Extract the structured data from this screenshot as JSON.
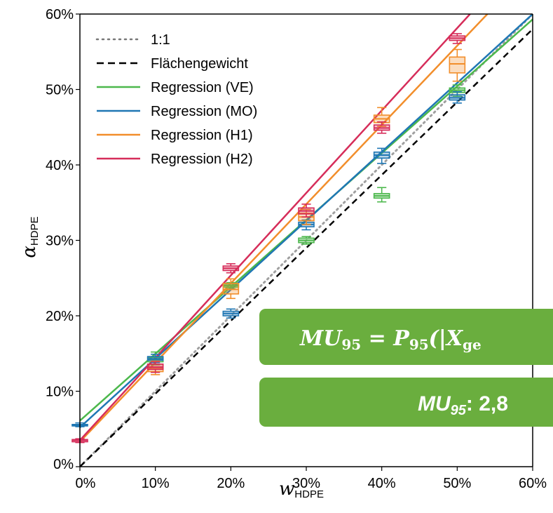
{
  "chart_data": {
    "type": "line",
    "xlabel": "w",
    "xlabel_sub": "HDPE",
    "ylabel": "α",
    "ylabel_sub": "HDPE",
    "xlim": [
      0,
      60
    ],
    "ylim": [
      0,
      60
    ],
    "x_ticks": [
      0,
      10,
      20,
      30,
      40,
      50,
      60
    ],
    "y_ticks": [
      0,
      10,
      20,
      30,
      40,
      50,
      60
    ],
    "x_tick_labels": [
      "0%",
      "10%",
      "20%",
      "30%",
      "40%",
      "50%",
      "60%"
    ],
    "y_tick_labels": [
      "0%",
      "10%",
      "20%",
      "30%",
      "40%",
      "50%",
      "60%"
    ],
    "legend": "top-left",
    "reference_lines": [
      {
        "name": "1:1",
        "style": "dotted",
        "color": "#a0a0a0",
        "x": [
          0,
          60
        ],
        "y": [
          0,
          60
        ]
      },
      {
        "name": "Flächengewicht",
        "style": "dashed",
        "color": "#000000",
        "x": [
          0,
          60
        ],
        "y": [
          0,
          58
        ]
      }
    ],
    "series": [
      {
        "name": "Regression (VE)",
        "color": "#4cb84c",
        "line": [
          [
            0,
            6.1
          ],
          [
            60,
            59.3
          ]
        ],
        "boxes": [
          {
            "x": 10,
            "q1": 13.9,
            "median": 14.2,
            "q3": 14.5,
            "wmin": 13.5,
            "wmax": 15.2
          },
          {
            "x": 20,
            "q1": 23.8,
            "median": 24.0,
            "q3": 24.2,
            "wmin": 23.6,
            "wmax": 24.4
          },
          {
            "x": 30,
            "q1": 29.7,
            "median": 30.0,
            "q3": 30.3,
            "wmin": 29.5,
            "wmax": 30.5
          },
          {
            "x": 40,
            "q1": 35.6,
            "median": 35.9,
            "q3": 36.2,
            "wmin": 35.1,
            "wmax": 37.0
          },
          {
            "x": 50,
            "q1": 49.6,
            "median": 49.9,
            "q3": 50.2,
            "wmin": 49.1,
            "wmax": 50.6
          }
        ]
      },
      {
        "name": "Regression (MO)",
        "color": "#1f77b4",
        "line": [
          [
            0,
            5.2
          ],
          [
            60,
            60.0
          ]
        ],
        "boxes": [
          {
            "x": 0,
            "q1": 5.4,
            "median": 5.5,
            "q3": 5.6,
            "wmin": 5.3,
            "wmax": 5.8
          },
          {
            "x": 10,
            "q1": 14.1,
            "median": 14.3,
            "q3": 14.6,
            "wmin": 13.8,
            "wmax": 14.9
          },
          {
            "x": 20,
            "q1": 20.0,
            "median": 20.3,
            "q3": 20.6,
            "wmin": 19.7,
            "wmax": 20.9
          },
          {
            "x": 30,
            "q1": 31.8,
            "median": 32.1,
            "q3": 32.4,
            "wmin": 31.4,
            "wmax": 32.7
          },
          {
            "x": 40,
            "q1": 40.9,
            "median": 41.3,
            "q3": 41.7,
            "wmin": 40.2,
            "wmax": 42.2
          },
          {
            "x": 50,
            "q1": 48.6,
            "median": 48.9,
            "q3": 49.3,
            "wmin": 48.2,
            "wmax": 49.7
          }
        ]
      },
      {
        "name": "Regression (H1)",
        "color": "#f28e2b",
        "line": [
          [
            0,
            3.3
          ],
          [
            54,
            60.0
          ]
        ],
        "boxes": [
          {
            "x": 10,
            "q1": 12.6,
            "median": 13.0,
            "q3": 13.6,
            "wmin": 12.2,
            "wmax": 14.0
          },
          {
            "x": 20,
            "q1": 22.9,
            "median": 23.5,
            "q3": 24.3,
            "wmin": 22.3,
            "wmax": 24.9
          },
          {
            "x": 30,
            "q1": 32.6,
            "median": 33.1,
            "q3": 33.6,
            "wmin": 32.1,
            "wmax": 34.1
          },
          {
            "x": 40,
            "q1": 45.6,
            "median": 46.1,
            "q3": 46.6,
            "wmin": 45.1,
            "wmax": 47.6
          },
          {
            "x": 50,
            "q1": 52.2,
            "median": 53.4,
            "q3": 54.3,
            "wmin": 51.1,
            "wmax": 55.3
          }
        ]
      },
      {
        "name": "Regression (H2)",
        "color": "#d62d5a",
        "line": [
          [
            0,
            3.5
          ],
          [
            51.7,
            60.0
          ]
        ],
        "boxes": [
          {
            "x": 0,
            "q1": 3.3,
            "median": 3.5,
            "q3": 3.6,
            "wmin": 3.2,
            "wmax": 3.7
          },
          {
            "x": 10,
            "q1": 12.9,
            "median": 13.2,
            "q3": 13.6,
            "wmin": 12.5,
            "wmax": 13.9
          },
          {
            "x": 20,
            "q1": 26.0,
            "median": 26.3,
            "q3": 26.6,
            "wmin": 25.7,
            "wmax": 26.9
          },
          {
            "x": 30,
            "q1": 33.5,
            "median": 33.9,
            "q3": 34.3,
            "wmin": 33.1,
            "wmax": 34.8
          },
          {
            "x": 40,
            "q1": 44.6,
            "median": 44.9,
            "q3": 45.3,
            "wmin": 44.2,
            "wmax": 45.7
          },
          {
            "x": 50,
            "q1": 56.5,
            "median": 56.8,
            "q3": 57.1,
            "wmin": 56.1,
            "wmax": 57.4
          }
        ]
      }
    ]
  },
  "annotations": {
    "formula_main": "MU",
    "formula_main_sub": "95",
    "formula_eq": " = P",
    "formula_p_sub": "95",
    "formula_rest": "(|X",
    "formula_rest_sub": "ge",
    "result_var": "MU",
    "result_var_sub": "95",
    "result_value": ": 2,8",
    "box_color": "#6aae3e"
  }
}
